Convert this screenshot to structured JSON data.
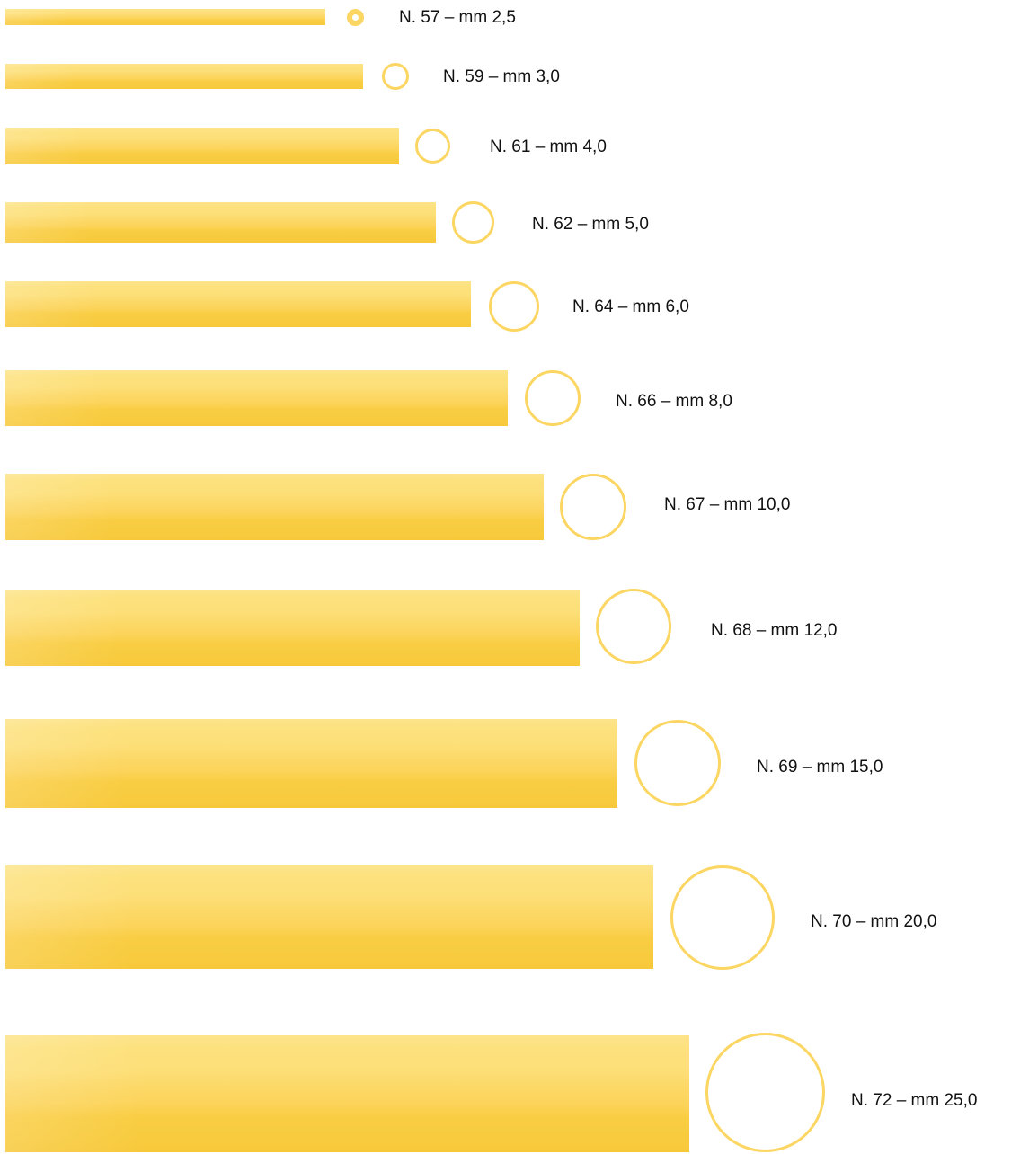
{
  "items": [
    {
      "label": "N. 57 – mm 2,5"
    },
    {
      "label": "N. 59 – mm 3,0"
    },
    {
      "label": "N. 61 – mm 4,0"
    },
    {
      "label": "N. 62 – mm 5,0"
    },
    {
      "label": "N. 64 – mm 6,0"
    },
    {
      "label": "N. 66 – mm 8,0"
    },
    {
      "label": "N. 67 – mm 10,0"
    },
    {
      "label": "N. 68 – mm 12,0"
    },
    {
      "label": "N. 69 – mm 15,0"
    },
    {
      "label": "N. 70 – mm 20,0"
    },
    {
      "label": "N. 72 – mm 25,0"
    }
  ],
  "colors": {
    "tube_light": "#fde48c",
    "tube_dark": "#f7c83a",
    "ring": "#fcd663"
  }
}
